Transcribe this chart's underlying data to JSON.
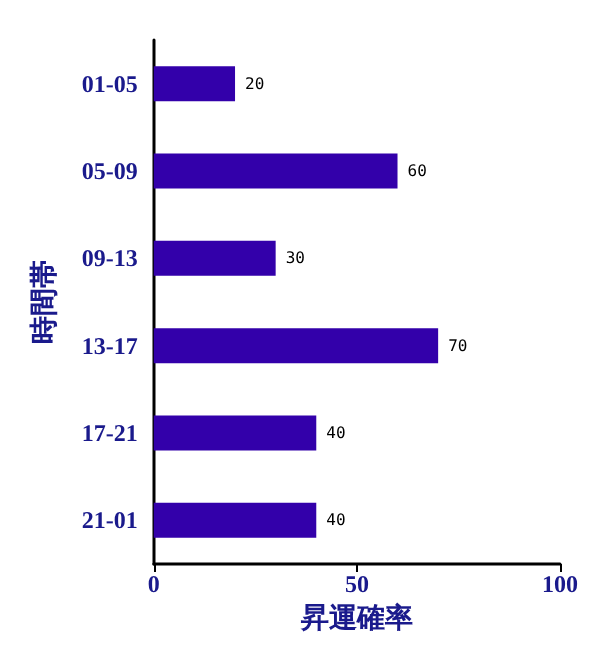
{
  "chart_data": {
    "type": "bar",
    "orientation": "horizontal",
    "xlabel": "昇運確率",
    "ylabel": "時間帯",
    "categories": [
      "01-05",
      "05-09",
      "09-13",
      "13-17",
      "17-21",
      "21-01"
    ],
    "series": [
      {
        "color": "#3300aa",
        "values": [
          20,
          60,
          30,
          70,
          40,
          40
        ]
      }
    ],
    "xlim": [
      0,
      100
    ],
    "xticks": [
      0,
      50,
      100
    ],
    "data_labels": true
  }
}
